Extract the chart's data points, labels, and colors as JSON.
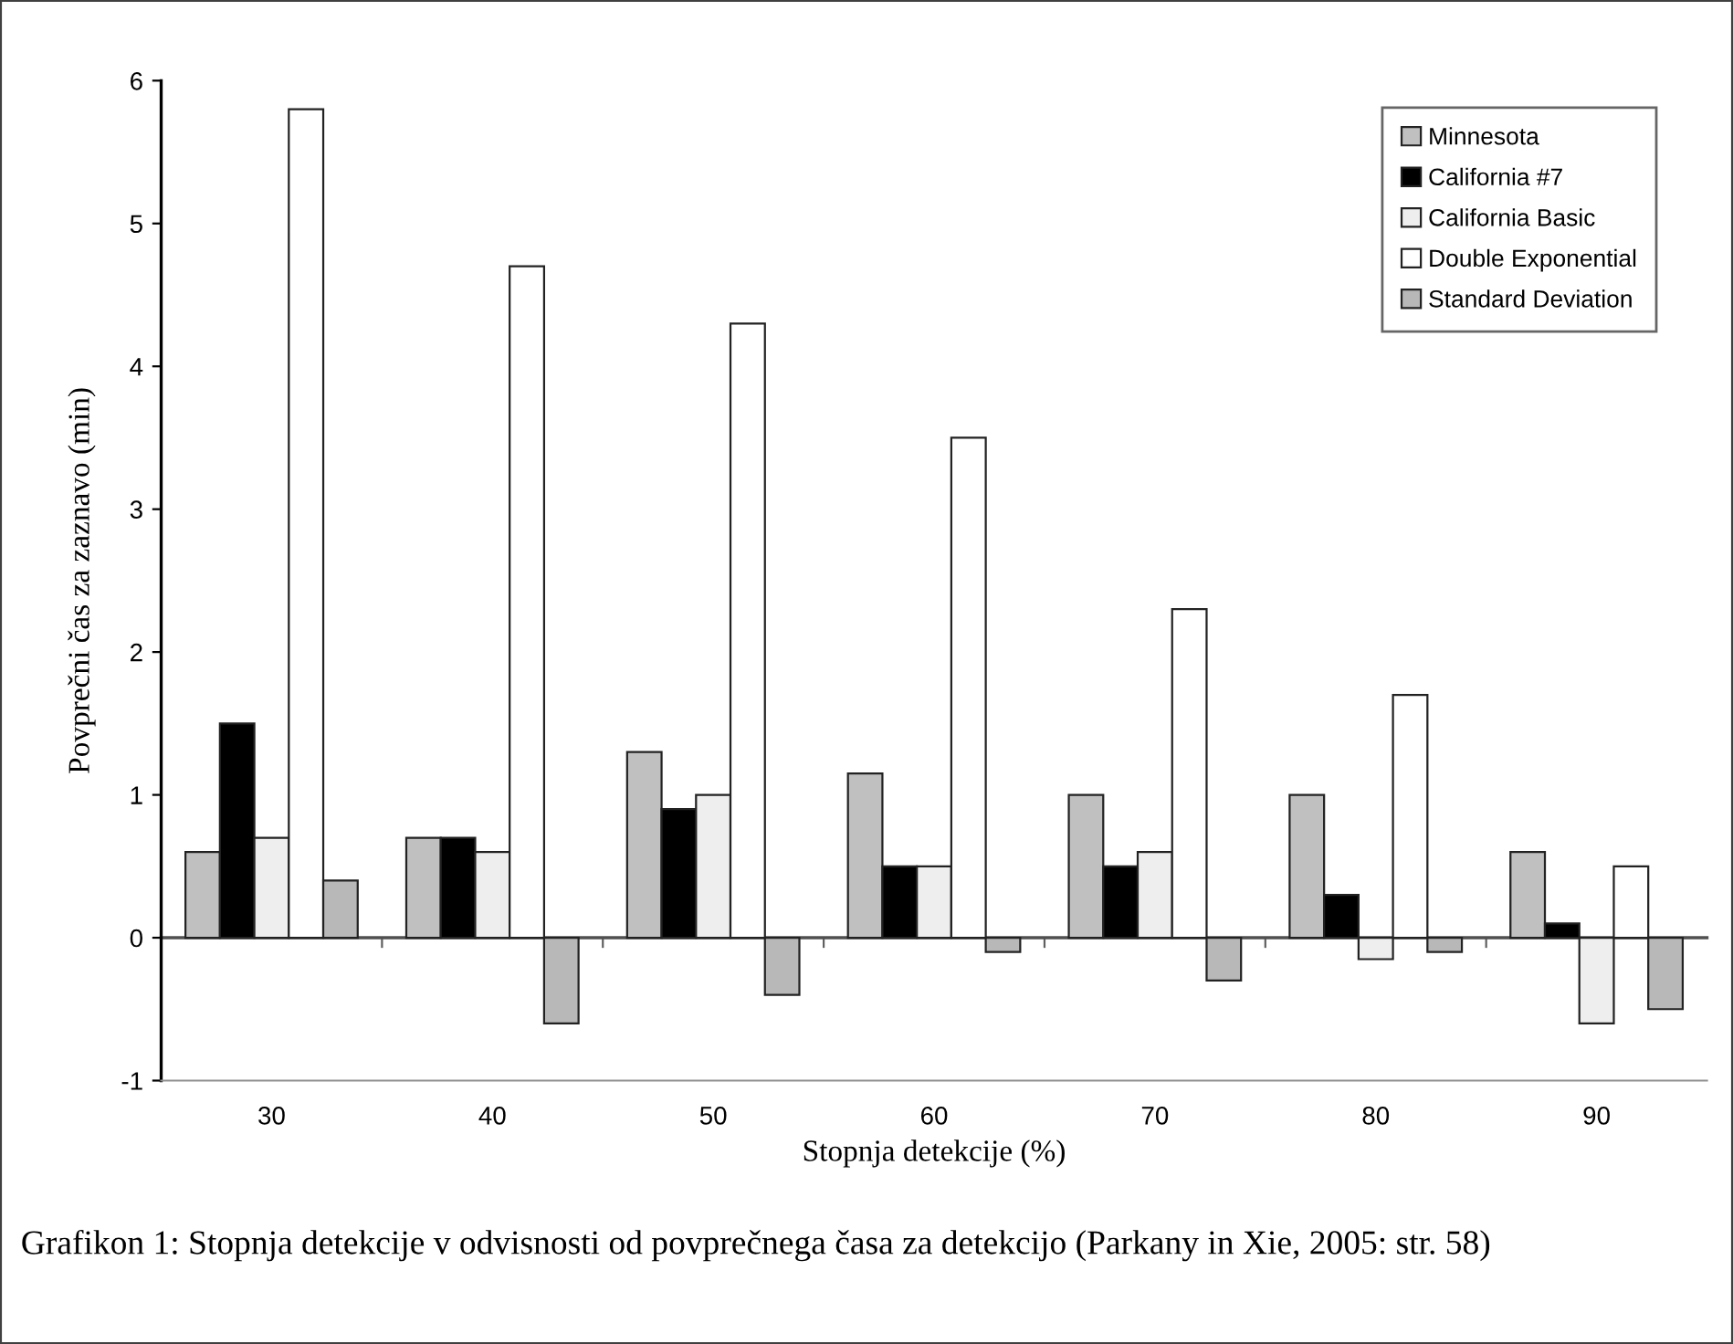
{
  "chart_data": {
    "type": "bar",
    "xlabel": "Stopnja detekcije (%)",
    "ylabel": "Povprečni čas za zaznavo (min)",
    "categories": [
      "30",
      "40",
      "50",
      "60",
      "70",
      "80",
      "90"
    ],
    "series": [
      {
        "name": "Minnesota",
        "color": "#c0c0c0",
        "values": [
          0.6,
          0.7,
          1.3,
          1.15,
          1.0,
          1.0,
          0.6
        ]
      },
      {
        "name": "California #7",
        "color": "#000000",
        "values": [
          1.5,
          0.7,
          0.9,
          0.5,
          0.5,
          0.3,
          0.1
        ]
      },
      {
        "name": "California Basic",
        "color": "#eeeeee",
        "values": [
          0.7,
          0.6,
          1.0,
          0.5,
          0.6,
          -0.15,
          -0.6
        ]
      },
      {
        "name": "Double Exponential",
        "color": "#ffffff",
        "values": [
          5.8,
          4.7,
          4.3,
          3.5,
          2.3,
          1.7,
          0.5
        ]
      },
      {
        "name": "Standard Deviation",
        "color": "#b8b8b8",
        "values": [
          0.4,
          -0.6,
          -0.4,
          -0.1,
          -0.3,
          -0.1,
          -0.5
        ]
      }
    ],
    "ylim": [
      -1,
      6
    ],
    "yticks": [
      -1,
      0,
      1,
      2,
      3,
      4,
      5,
      6
    ],
    "legend": "top right",
    "annotations": [
      "Grafikon 1: Stopnja detekcije v odvisnosti od povprečnega časa za detekcijo (Parkany in Xie, 2005: str. 58)"
    ]
  }
}
